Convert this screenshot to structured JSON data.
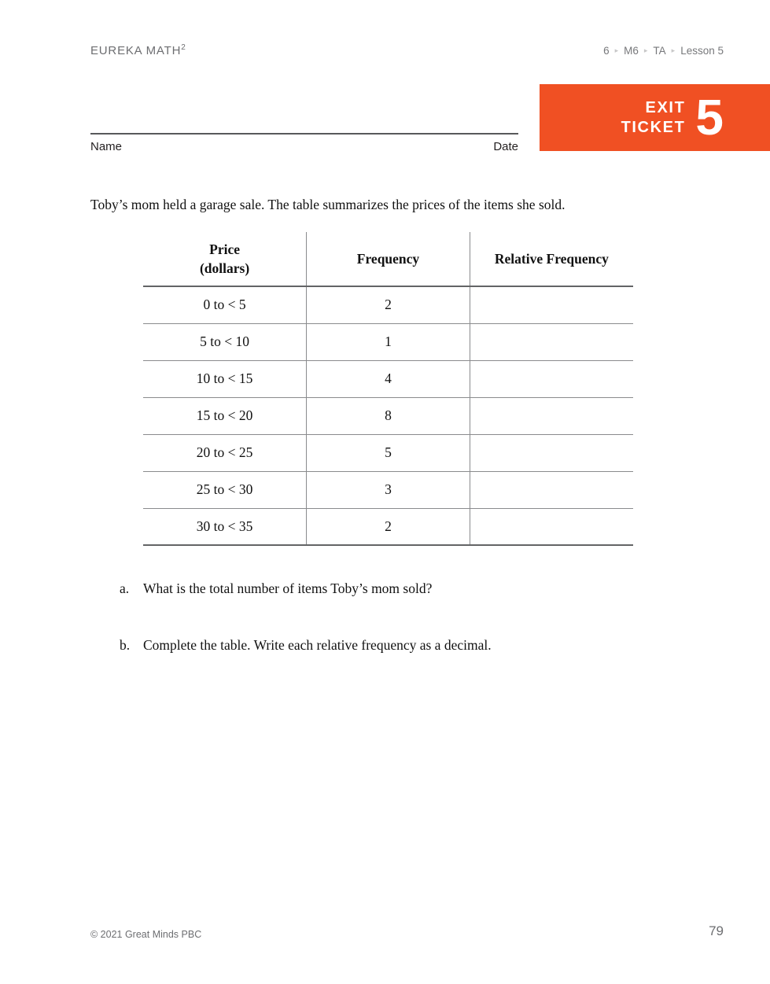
{
  "header": {
    "brand": "EUREKA MATH",
    "brand_sup": "2",
    "breadcrumb": {
      "items": [
        "6",
        "M6",
        "TA",
        "Lesson 5"
      ],
      "separator": "▸"
    }
  },
  "badge": {
    "line1": "EXIT",
    "line2": "TICKET",
    "number": "5",
    "color": "#F05023"
  },
  "form": {
    "name_label": "Name",
    "date_label": "Date"
  },
  "problem": {
    "intro": "Toby’s mom held a garage sale. The table summarizes the prices of the items she sold."
  },
  "table": {
    "col1_header_line1": "Price",
    "col1_header_line2": "(dollars)",
    "col2_header": "Frequency",
    "col3_header": "Relative Frequency",
    "rows": [
      {
        "price": "0 to < 5",
        "frequency": "2",
        "relative_frequency": ""
      },
      {
        "price": "5 to < 10",
        "frequency": "1",
        "relative_frequency": ""
      },
      {
        "price": "10 to < 15",
        "frequency": "4",
        "relative_frequency": ""
      },
      {
        "price": "15 to < 20",
        "frequency": "8",
        "relative_frequency": ""
      },
      {
        "price": "20 to < 25",
        "frequency": "5",
        "relative_frequency": ""
      },
      {
        "price": "25 to < 30",
        "frequency": "3",
        "relative_frequency": ""
      },
      {
        "price": "30 to < 35",
        "frequency": "2",
        "relative_frequency": ""
      }
    ]
  },
  "questions": [
    {
      "label": "a.",
      "text": "What is the total number of items Toby’s mom sold?"
    },
    {
      "label": "b.",
      "text": "Complete the table. Write each relative frequency as a decimal."
    }
  ],
  "footer": {
    "copyright": "© 2021 Great Minds PBC",
    "page_number": "79"
  }
}
